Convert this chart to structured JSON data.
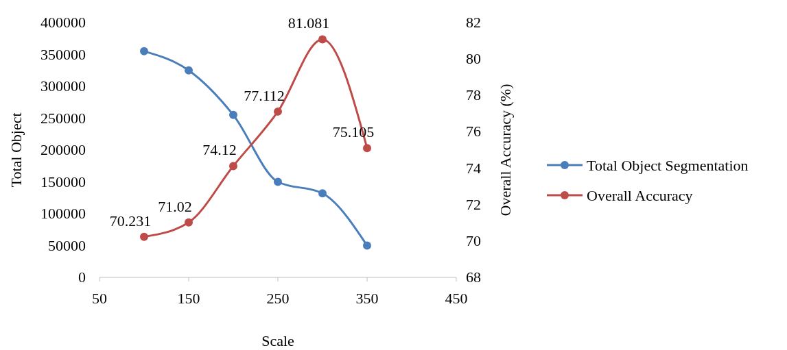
{
  "chart_data": {
    "type": "line",
    "xlabel": "Scale",
    "ylabel": "Total Object",
    "y2label": "Overall Accuracy (%)",
    "x": [
      100,
      150,
      200,
      250,
      300,
      350
    ],
    "xlim": [
      50,
      450
    ],
    "xticks": [
      50,
      150,
      250,
      350,
      450
    ],
    "ylim": [
      0,
      400000
    ],
    "yticks": [
      0,
      50000,
      100000,
      150000,
      200000,
      250000,
      300000,
      350000,
      400000
    ],
    "y2lim": [
      68,
      82
    ],
    "y2ticks": [
      68,
      70,
      72,
      74,
      76,
      78,
      80,
      82
    ],
    "series": [
      {
        "name": "Total Object Segmentation",
        "color": "#4a7ebb",
        "values": [
          355000,
          325000,
          255000,
          150000,
          132000,
          50000
        ]
      },
      {
        "name": "Overall Accuracy",
        "color": "#be4b48",
        "axis": "y2",
        "values": [
          70.231,
          71.02,
          74.12,
          77.112,
          81.081,
          75.105
        ],
        "value_labels": [
          "70.231",
          "71.02",
          "74.12",
          "77.112",
          "81.081",
          "75.105"
        ]
      }
    ],
    "marker": "circle",
    "line_style": "solid",
    "grid": false,
    "legend": "right"
  }
}
